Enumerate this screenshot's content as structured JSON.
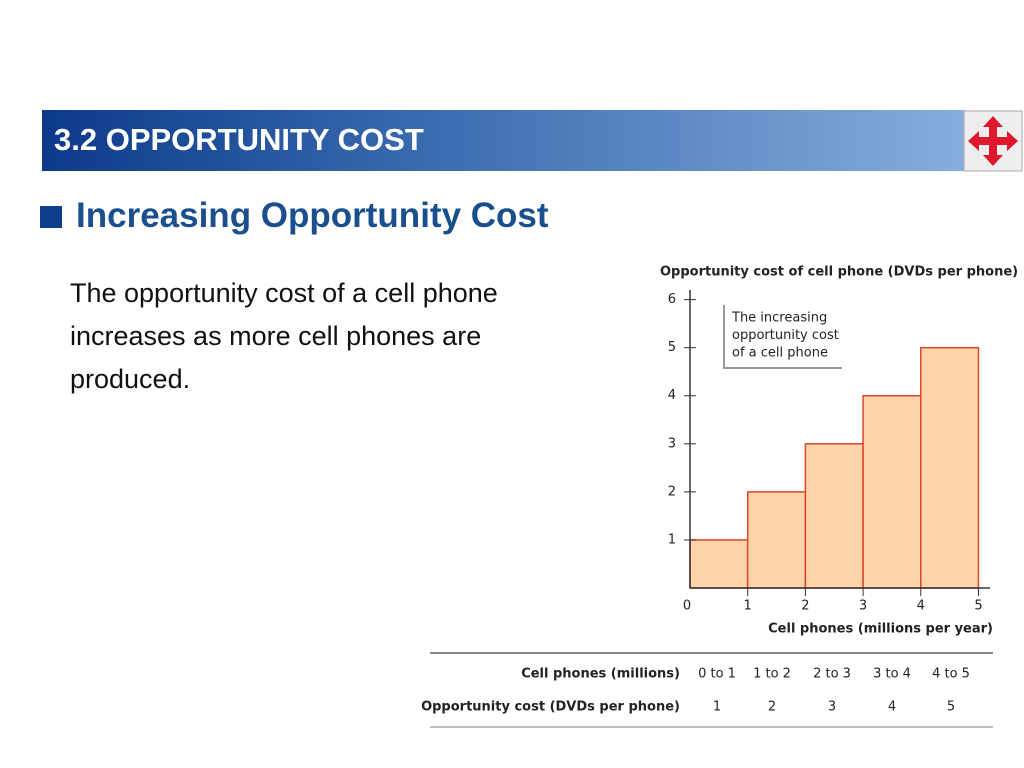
{
  "header": {
    "title": "3.2  OPPORTUNITY COST"
  },
  "heading": "Increasing Opportunity Cost",
  "body": "The opportunity cost of a cell phone increases as more cell phones are produced.",
  "chart_data": {
    "type": "histogram",
    "title": "Opportunity cost of cell phone (DVDs per phone)",
    "xlabel": "Cell phones (millions per year)",
    "bins": [
      0,
      1,
      2,
      3,
      4,
      5
    ],
    "counts": [
      1,
      2,
      3,
      4,
      5
    ],
    "xlim": [
      0,
      5.2
    ],
    "xticks": [
      0,
      1,
      2,
      3,
      4,
      5
    ],
    "ylim": [
      0,
      6.2
    ],
    "yticks": [
      1,
      2,
      3,
      4,
      5,
      6
    ],
    "color": "#fdd5a8",
    "edgecolor": "#e0452c",
    "annotation": [
      "The increasing",
      "opportunity cost",
      "of a cell phone"
    ]
  },
  "table": {
    "rows": [
      [
        "Cell phones (millions)",
        "0 to 1",
        "1 to 2",
        "2 to 3",
        "3 to 4",
        "4 to 5"
      ],
      [
        "Opportunity cost (DVDs per phone)",
        1,
        2,
        3,
        4,
        5
      ]
    ]
  }
}
